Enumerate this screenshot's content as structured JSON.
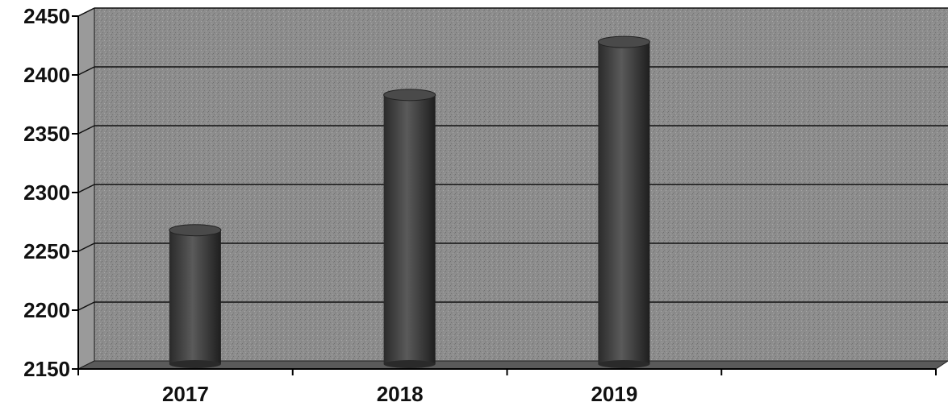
{
  "chart_data": {
    "type": "bar",
    "categories": [
      "2017",
      "2018",
      "2019",
      ""
    ],
    "values": [
      2268,
      2383,
      2428,
      null
    ],
    "ylim": [
      2150,
      2450
    ],
    "yticks": [
      2450,
      2400,
      2350,
      2300,
      2250,
      2200,
      2150
    ],
    "grid": true,
    "legend": "none",
    "colors": {
      "background": "#8a8a8a",
      "grid": "#111111",
      "bar": "#3a3a3a",
      "floor": "#5a5a5a"
    }
  }
}
